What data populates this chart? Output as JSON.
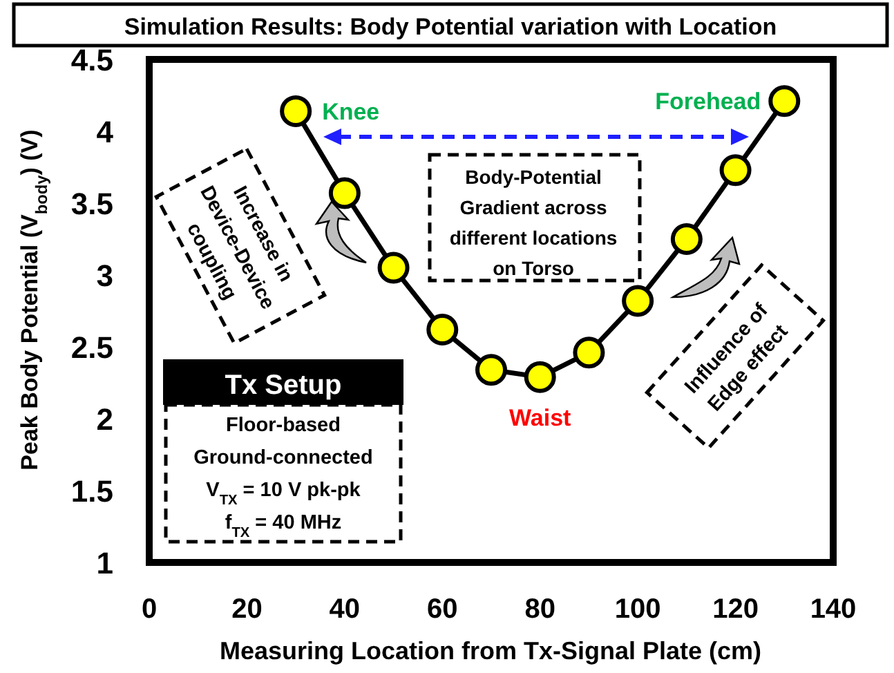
{
  "chart_data": {
    "type": "line",
    "title": "Simulation Results: Body Potential variation with Location",
    "xlabel": "Measuring Location from Tx-Signal Plate (cm)",
    "ylabel": "Peak Body Potential (V$_{body}$) (V)",
    "x": [
      30,
      40,
      50,
      60,
      70,
      80,
      90,
      100,
      110,
      120,
      130
    ],
    "series": [
      {
        "color": "#ffff00",
        "values": [
          4.14,
          3.57,
          3.05,
          2.62,
          2.34,
          2.29,
          2.46,
          2.82,
          3.25,
          3.73,
          4.21
        ]
      }
    ],
    "xlim": [
      0,
      140
    ],
    "xticks": [
      0,
      20,
      40,
      60,
      80,
      100,
      120,
      140
    ],
    "ylim": [
      1,
      4.5
    ],
    "yticks": [
      1,
      1.5,
      2,
      2.5,
      3,
      3.5,
      4,
      4.5
    ],
    "grid": false,
    "marker": "circle",
    "line_style": "solid",
    "annotations": [
      {
        "text": "Knee",
        "x": 30,
        "y": 4.14
      },
      {
        "text": "Forehead",
        "x": 130,
        "y": 4.21
      },
      {
        "text": "Waist",
        "x": 80,
        "y": 2.29
      },
      "Tx Setup",
      "Floor-based\nGround-connected\nV$_{TX}$ = 10 V pk-pk\nf$_{TX}$ = 40 MHz",
      "Body-Potential\nGradient across\ndifferent locations\non Torso",
      "Increase in\nDevice-Device\ncoupling",
      "Influence of\nEdge effect"
    ]
  }
}
